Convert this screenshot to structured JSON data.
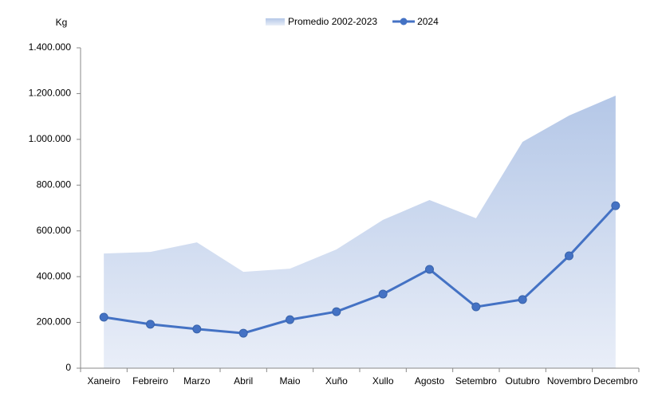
{
  "chart_data": {
    "type": "area-line",
    "y_label": "Kg",
    "categories": [
      "Xaneiro",
      "Febreiro",
      "Marzo",
      "Abril",
      "Maio",
      "Xuño",
      "Xullo",
      "Agosto",
      "Setembro",
      "Outubro",
      "Novembro",
      "Decembro"
    ],
    "series": [
      {
        "name": "Promedio 2002-2023",
        "kind": "area",
        "color": "#b4c7e7",
        "values": [
          501000,
          508000,
          550000,
          421000,
          435000,
          519000,
          648000,
          735000,
          655000,
          989000,
          1104000,
          1191000
        ]
      },
      {
        "name": "2024",
        "kind": "line",
        "color": "#4472c4",
        "values": [
          223000,
          192000,
          171000,
          153000,
          212000,
          247000,
          324000,
          432000,
          268000,
          300000,
          491000,
          710000
        ]
      }
    ],
    "ylim": [
      0,
      1400000
    ],
    "yticks": [
      0,
      {
        "value": 200000,
        "label": "200.000"
      },
      {
        "value": 400000,
        "label": "400.000"
      },
      {
        "value": 600000,
        "label": "600.000"
      },
      {
        "value": 800000,
        "label": "800.000"
      },
      {
        "value": 1000000,
        "label": "1.000.000"
      },
      {
        "value": 1200000,
        "label": "1.200.000"
      },
      {
        "value": 1400000,
        "label": "1.400.000"
      }
    ]
  }
}
